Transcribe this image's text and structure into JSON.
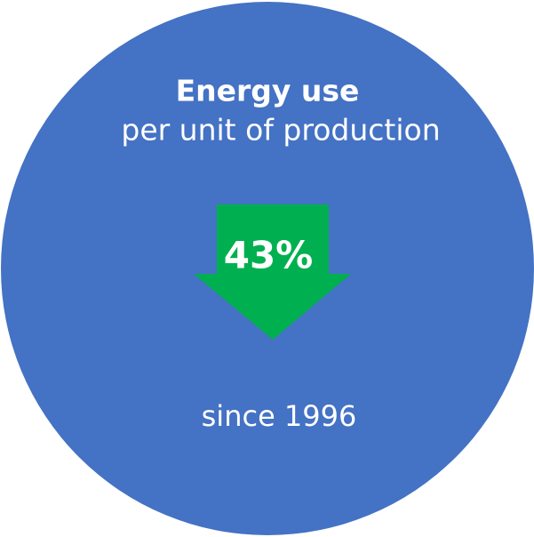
{
  "heading": {
    "title": "Energy use",
    "subtitle": "per unit of production"
  },
  "change": {
    "label": "43%",
    "note": "since 1996"
  }
}
